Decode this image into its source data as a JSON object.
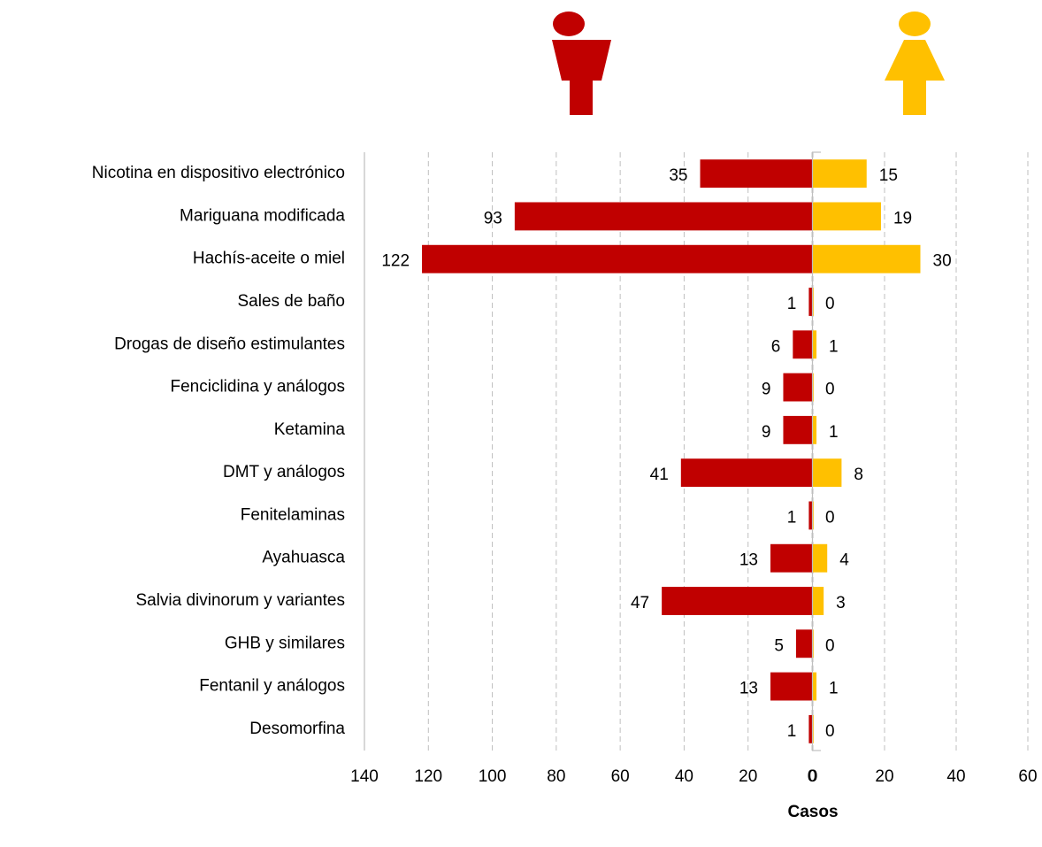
{
  "chart_data": [
    {
      "type": "bar",
      "orientation": "horizontal",
      "categories": [
        "Nicotina en dispositivo electrónico",
        "Mariguana modificada",
        "Hachís-aceite o miel",
        "Sales de baño",
        "Drogas de diseño  estimulantes",
        "Fenciclidina y análogos",
        "Ketamina",
        "DMT y análogos",
        "Fenitelaminas",
        "Ayahuasca",
        "Salvia divinorum y variantes",
        "GHB y similares",
        "Fentanil y análogos",
        "Desomorfina"
      ],
      "values": [
        35,
        93,
        122,
        1,
        6,
        9,
        9,
        41,
        1,
        13,
        47,
        5,
        13,
        1
      ],
      "color": "#c00000",
      "xlim": [
        140,
        0
      ],
      "xticks": [
        140,
        120,
        100,
        80,
        60,
        40,
        20,
        0
      ],
      "grid": true
    },
    {
      "type": "bar",
      "orientation": "horizontal",
      "values": [
        15,
        19,
        30,
        0,
        1,
        0,
        1,
        8,
        0,
        4,
        3,
        0,
        1,
        0
      ],
      "color": "#ffc000",
      "xlim": [
        0,
        60
      ],
      "xticks": [
        0,
        20,
        40,
        60
      ],
      "grid": true,
      "xlabel": "Casos"
    }
  ]
}
